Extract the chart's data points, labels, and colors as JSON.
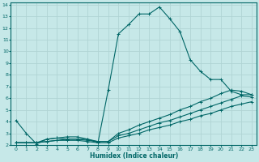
{
  "xlabel": "Humidex (Indice chaleur)",
  "xlim": [
    -0.5,
    23.5
  ],
  "ylim": [
    2,
    14.2
  ],
  "xticks": [
    0,
    1,
    2,
    3,
    4,
    5,
    6,
    7,
    8,
    9,
    10,
    11,
    12,
    13,
    14,
    15,
    16,
    17,
    18,
    19,
    20,
    21,
    22,
    23
  ],
  "yticks": [
    2,
    3,
    4,
    5,
    6,
    7,
    8,
    9,
    10,
    11,
    12,
    13,
    14
  ],
  "bg_color": "#c6e8e8",
  "grid_color": "#b0d4d4",
  "line_color": "#006666",
  "series": [
    {
      "x": [
        0,
        1,
        2,
        3,
        4,
        5,
        6,
        7,
        8,
        9,
        10,
        11,
        12,
        13,
        14,
        15,
        16,
        17,
        18,
        19,
        20,
        21,
        22,
        23
      ],
      "y": [
        4.1,
        3.0,
        2.1,
        2.5,
        2.6,
        2.5,
        2.5,
        2.5,
        2.2,
        6.7,
        11.5,
        12.3,
        13.2,
        13.2,
        13.8,
        12.8,
        11.7,
        9.3,
        8.3,
        7.6,
        7.6,
        6.6,
        6.3,
        6.3
      ]
    },
    {
      "x": [
        0,
        1,
        2,
        3,
        4,
        5,
        6,
        7,
        8,
        9,
        10,
        11,
        12,
        13,
        14,
        15,
        16,
        17,
        18,
        19,
        20,
        21,
        22,
        23
      ],
      "y": [
        2.2,
        2.2,
        2.2,
        2.5,
        2.6,
        2.7,
        2.7,
        2.5,
        2.3,
        2.3,
        3.0,
        3.3,
        3.7,
        4.0,
        4.3,
        4.6,
        5.0,
        5.3,
        5.7,
        6.0,
        6.4,
        6.7,
        6.6,
        6.3
      ]
    },
    {
      "x": [
        0,
        1,
        2,
        3,
        4,
        5,
        6,
        7,
        8,
        9,
        10,
        11,
        12,
        13,
        14,
        15,
        16,
        17,
        18,
        19,
        20,
        21,
        22,
        23
      ],
      "y": [
        2.2,
        2.2,
        2.2,
        2.3,
        2.4,
        2.5,
        2.5,
        2.4,
        2.3,
        2.3,
        2.8,
        3.0,
        3.3,
        3.6,
        3.9,
        4.1,
        4.4,
        4.7,
        5.0,
        5.3,
        5.6,
        5.9,
        6.2,
        6.1
      ]
    },
    {
      "x": [
        0,
        1,
        2,
        3,
        4,
        5,
        6,
        7,
        8,
        9,
        10,
        11,
        12,
        13,
        14,
        15,
        16,
        17,
        18,
        19,
        20,
        21,
        22,
        23
      ],
      "y": [
        2.2,
        2.2,
        2.2,
        2.3,
        2.4,
        2.4,
        2.4,
        2.3,
        2.2,
        2.2,
        2.6,
        2.8,
        3.0,
        3.3,
        3.5,
        3.7,
        4.0,
        4.2,
        4.5,
        4.7,
        5.0,
        5.3,
        5.5,
        5.7
      ]
    }
  ]
}
